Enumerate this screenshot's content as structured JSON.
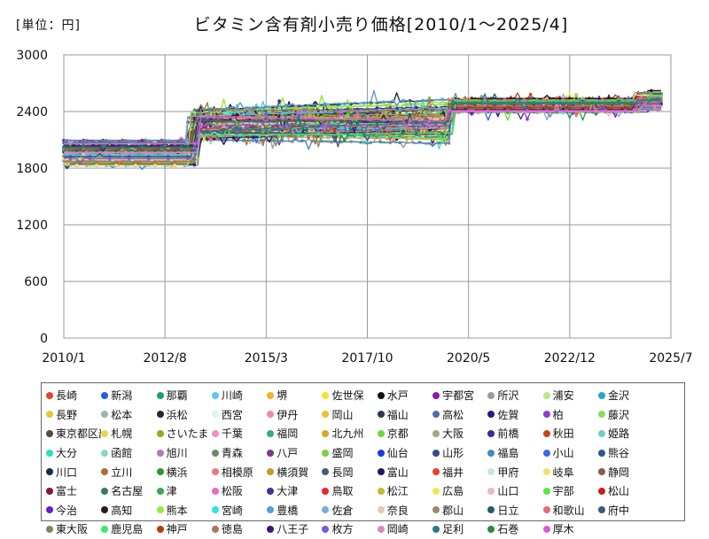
{
  "chart_data": {
    "type": "line",
    "title": "ビタミン含有剤小売り価格[2010/1～2025/4]",
    "unit_label": "[単位：円]",
    "ylim": [
      0,
      3000
    ],
    "y_ticks": [
      "0",
      "600",
      "1200",
      "1800",
      "2400",
      "3000"
    ],
    "y_tick_values": [
      0,
      600,
      1200,
      1800,
      2400,
      3000
    ],
    "xlim": [
      2010.0,
      2025.5
    ],
    "x_ticks": [
      "2010/1",
      "2012/8",
      "2015/3",
      "2017/10",
      "2020/5",
      "2022/12",
      "2025/7"
    ],
    "x_tick_values": [
      2010.0,
      2012.583,
      2015.167,
      2017.75,
      2020.333,
      2022.917,
      2025.5
    ],
    "grid": true,
    "legend_position": "bottom",
    "series": [
      {
        "name": "長崎",
        "color": "#e8432a"
      },
      {
        "name": "新潟",
        "color": "#1f5fe0"
      },
      {
        "name": "那覇",
        "color": "#17a36f"
      },
      {
        "name": "川崎",
        "color": "#5bc8f5"
      },
      {
        "name": "堺",
        "color": "#f2b22c"
      },
      {
        "name": "佐世保",
        "color": "#f5e52a"
      },
      {
        "name": "水戸",
        "color": "#111111"
      },
      {
        "name": "宇都宮",
        "color": "#8a1aa8"
      },
      {
        "name": "所沢",
        "color": "#9a9a9a"
      },
      {
        "name": "浦安",
        "color": "#b5ee7a"
      },
      {
        "name": "金沢",
        "color": "#20a9c8"
      },
      {
        "name": "長野",
        "color": "#e9c62c"
      },
      {
        "name": "松本",
        "color": "#9bb8a5"
      },
      {
        "name": "浜松",
        "color": "#1c2b2b"
      },
      {
        "name": "西宮",
        "color": "#def3ea"
      },
      {
        "name": "伊丹",
        "color": "#f08aa8"
      },
      {
        "name": "岡山",
        "color": "#e7c22f"
      },
      {
        "name": "福山",
        "color": "#2d3a4f"
      },
      {
        "name": "高松",
        "color": "#4d6fa8"
      },
      {
        "name": "佐賀",
        "color": "#20207a"
      },
      {
        "name": "柏",
        "color": "#8e3ed0"
      },
      {
        "name": "藤沢",
        "color": "#86e05a"
      },
      {
        "name": "東京都区部",
        "color": "#5a4a3a"
      },
      {
        "name": "札幌",
        "color": "#e8d54a"
      },
      {
        "name": "さいたま",
        "color": "#88b01d"
      },
      {
        "name": "千葉",
        "color": "#f08fc0"
      },
      {
        "name": "福岡",
        "color": "#3aa98a"
      },
      {
        "name": "北九州",
        "color": "#d4a82a"
      },
      {
        "name": "京都",
        "color": "#6bdc3c"
      },
      {
        "name": "大阪",
        "color": "#9aaa90"
      },
      {
        "name": "前橋",
        "color": "#3a2a9a"
      },
      {
        "name": "秋田",
        "color": "#c04a1c"
      },
      {
        "name": "姫路",
        "color": "#6ed0c0"
      },
      {
        "name": "大分",
        "color": "#28e0b8"
      },
      {
        "name": "函館",
        "color": "#8ad8c0"
      },
      {
        "name": "旭川",
        "color": "#b07ab8"
      },
      {
        "name": "青森",
        "color": "#6a8a6a"
      },
      {
        "name": "八戸",
        "color": "#7a3a8a"
      },
      {
        "name": "盛岡",
        "color": "#7ad03a"
      },
      {
        "name": "仙台",
        "color": "#1a3ae8"
      },
      {
        "name": "山形",
        "color": "#3a4a8a"
      },
      {
        "name": "福島",
        "color": "#4a8ab8"
      },
      {
        "name": "小山",
        "color": "#3a6ae8"
      },
      {
        "name": "熊谷",
        "color": "#2a5a8a"
      },
      {
        "name": "川口",
        "color": "#1a2a4a"
      },
      {
        "name": "立川",
        "color": "#b86a2a"
      },
      {
        "name": "横浜",
        "color": "#2a9a2a"
      },
      {
        "name": "相模原",
        "color": "#e87a7a"
      },
      {
        "name": "横須賀",
        "color": "#c89a2a"
      },
      {
        "name": "長岡",
        "color": "#4a5a7a"
      },
      {
        "name": "富山",
        "color": "#1a1a5a"
      },
      {
        "name": "福井",
        "color": "#e8402a"
      },
      {
        "name": "甲府",
        "color": "#c8e8d8"
      },
      {
        "name": "岐阜",
        "color": "#f5e06a"
      },
      {
        "name": "静岡",
        "color": "#8a5a4a"
      },
      {
        "name": "富士",
        "color": "#7a1a3a"
      },
      {
        "name": "名古屋",
        "color": "#3a7a5a"
      },
      {
        "name": "津",
        "color": "#3aa85a"
      },
      {
        "name": "松阪",
        "color": "#e86ac8"
      },
      {
        "name": "大津",
        "color": "#3a3a8a"
      },
      {
        "name": "鳥取",
        "color": "#e82a2a"
      },
      {
        "name": "松江",
        "color": "#c8b82a"
      },
      {
        "name": "広島",
        "color": "#f0e85a"
      },
      {
        "name": "山口",
        "color": "#e8b8c8"
      },
      {
        "name": "宇部",
        "color": "#5ae83a"
      },
      {
        "name": "松山",
        "color": "#c8201a"
      },
      {
        "name": "今治",
        "color": "#6a1ad8"
      },
      {
        "name": "高知",
        "color": "#2a1a1a"
      },
      {
        "name": "熊本",
        "color": "#9ae83a"
      },
      {
        "name": "宮崎",
        "color": "#2ae8d8"
      },
      {
        "name": "豊橋",
        "color": "#5a9ad8"
      },
      {
        "name": "佐倉",
        "color": "#7aaad8"
      },
      {
        "name": "奈良",
        "color": "#e8c8a8"
      },
      {
        "name": "郡山",
        "color": "#9a8a6a"
      },
      {
        "name": "日立",
        "color": "#2a5a6a"
      },
      {
        "name": "和歌山",
        "color": "#e86a7a"
      },
      {
        "name": "府中",
        "color": "#3a5a7a"
      },
      {
        "name": "東大阪",
        "color": "#7a8a5a"
      },
      {
        "name": "鹿児島",
        "color": "#3ae86a"
      },
      {
        "name": "神戸",
        "color": "#b83a0a"
      },
      {
        "name": "徳島",
        "color": "#a87a5a"
      },
      {
        "name": "八王子",
        "color": "#3a1a6a"
      },
      {
        "name": "枚方",
        "color": "#7a5ad8"
      },
      {
        "name": "岡崎",
        "color": "#d88ab8"
      },
      {
        "name": "足利",
        "color": "#2a7a8a"
      },
      {
        "name": "石巻",
        "color": "#2a8a3a"
      },
      {
        "name": "厚木",
        "color": "#d85ad8"
      }
    ]
  }
}
